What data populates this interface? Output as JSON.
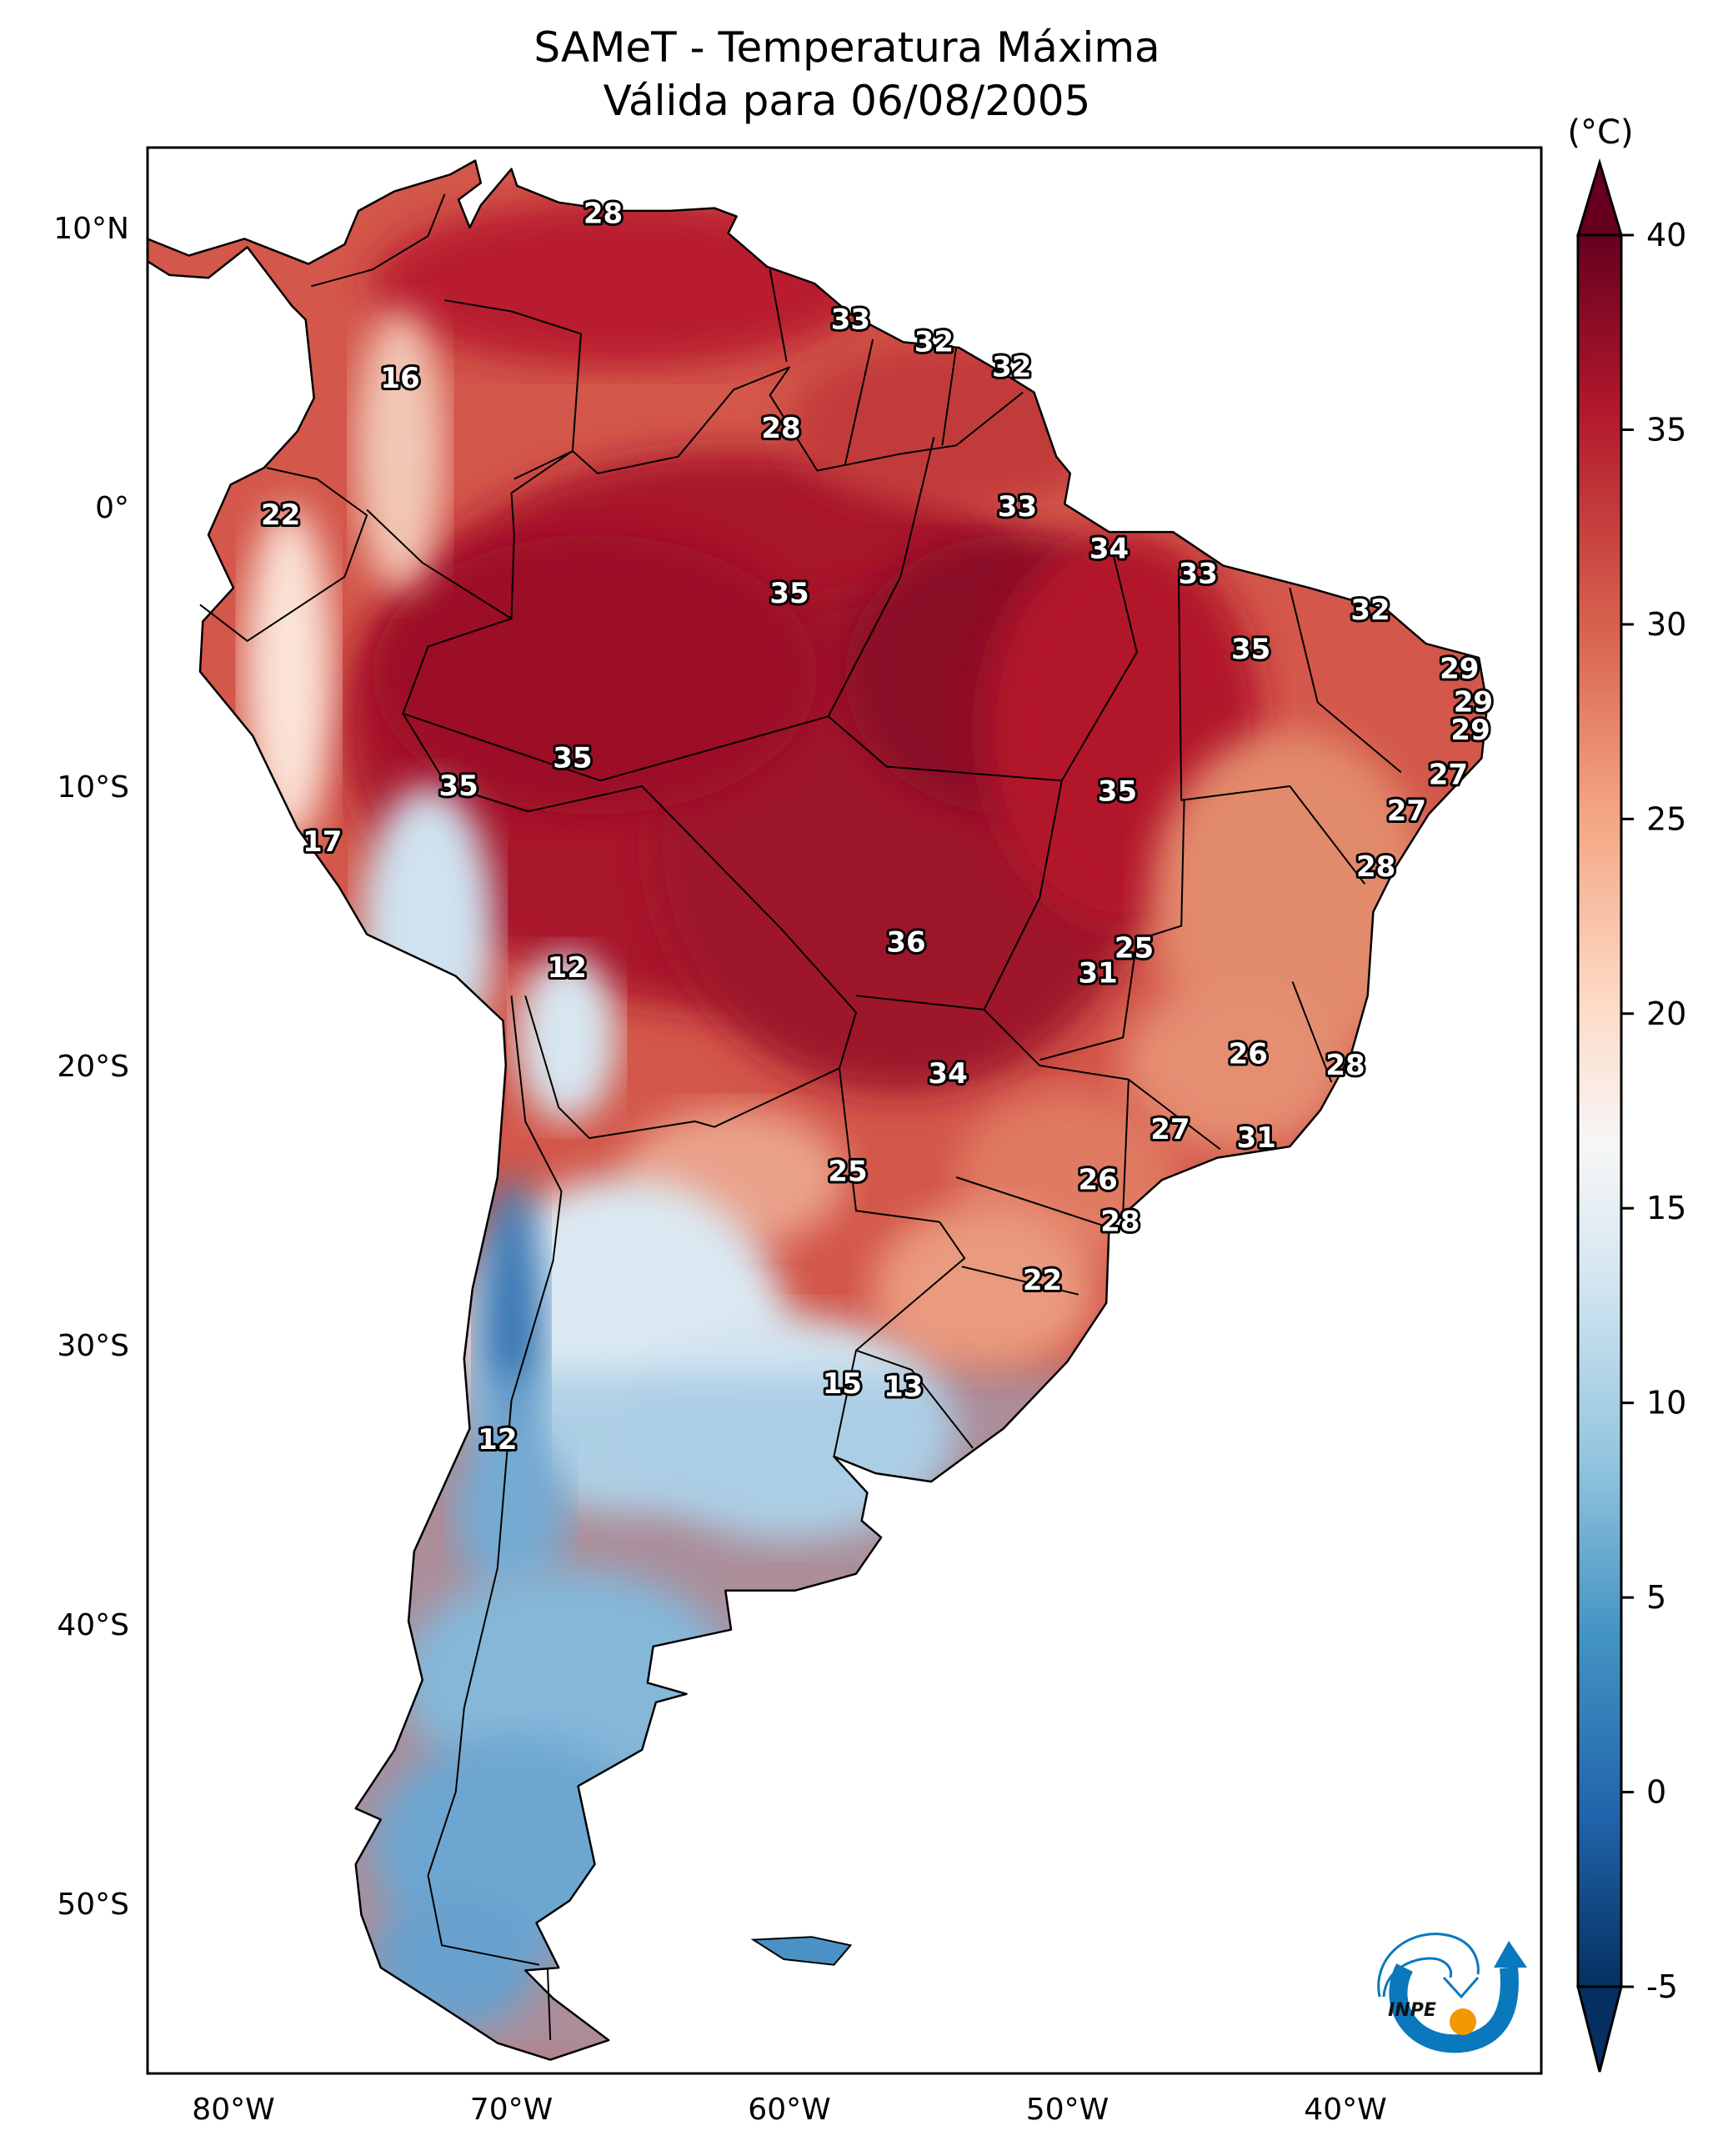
{
  "title": {
    "line1": "SAMeT - Temperatura Máxima",
    "line2": "Válida para 06/08/2005"
  },
  "chart_data": {
    "type": "heatmap",
    "title": "SAMeT - Temperatura Máxima",
    "subtitle": "Válida para 06/08/2005",
    "variable": "Maximum temperature",
    "region": "South America",
    "extent": {
      "lon": [
        -83,
        -33
      ],
      "lat": [
        -56,
        13
      ]
    },
    "xticks": [
      {
        "lon": -80,
        "label": "80°W"
      },
      {
        "lon": -70,
        "label": "70°W"
      },
      {
        "lon": -60,
        "label": "60°W"
      },
      {
        "lon": -50,
        "label": "50°W"
      },
      {
        "lon": -40,
        "label": "40°W"
      }
    ],
    "yticks": [
      {
        "lat": 10,
        "label": "10°N"
      },
      {
        "lat": 0,
        "label": "0°"
      },
      {
        "lat": -10,
        "label": "10°S"
      },
      {
        "lat": -20,
        "label": "20°S"
      },
      {
        "lat": -30,
        "label": "30°S"
      },
      {
        "lat": -40,
        "label": "40°S"
      },
      {
        "lat": -50,
        "label": "50°S"
      }
    ],
    "colorbar": {
      "unit": "(°C)",
      "min": -5,
      "max": 40,
      "extend": "both",
      "ticks": [
        40,
        35,
        30,
        25,
        20,
        15,
        10,
        5,
        0,
        -5
      ],
      "colormap": "RdBu_r",
      "colors": [
        "#053061",
        "#2166ac",
        "#4393c3",
        "#92c5de",
        "#d1e5f0",
        "#f7f7f7",
        "#fddbc7",
        "#f4a582",
        "#d6604d",
        "#b2182b",
        "#67001f"
      ]
    },
    "city_labels": [
      {
        "value": 28,
        "lon": -66.7,
        "lat": 10.5
      },
      {
        "value": 16,
        "lon": -74.0,
        "lat": 4.6
      },
      {
        "value": 33,
        "lon": -57.8,
        "lat": 6.7
      },
      {
        "value": 32,
        "lon": -54.8,
        "lat": 5.9
      },
      {
        "value": 32,
        "lon": -52.0,
        "lat": 5.0
      },
      {
        "value": 28,
        "lon": -60.3,
        "lat": 2.8
      },
      {
        "value": 22,
        "lon": -78.3,
        "lat": -0.3
      },
      {
        "value": 33,
        "lon": -51.8,
        "lat": 0.0
      },
      {
        "value": 34,
        "lon": -48.5,
        "lat": -1.5
      },
      {
        "value": 33,
        "lon": -45.3,
        "lat": -2.4
      },
      {
        "value": 35,
        "lon": -60.0,
        "lat": -3.1
      },
      {
        "value": 32,
        "lon": -39.1,
        "lat": -3.7
      },
      {
        "value": 35,
        "lon": -43.4,
        "lat": -5.1
      },
      {
        "value": 29,
        "lon": -35.9,
        "lat": -5.8
      },
      {
        "value": 29,
        "lon": -35.4,
        "lat": -7.0
      },
      {
        "value": 29,
        "lon": -35.5,
        "lat": -8.0
      },
      {
        "value": 35,
        "lon": -67.8,
        "lat": -9.0
      },
      {
        "value": 35,
        "lon": -71.9,
        "lat": -10.0
      },
      {
        "value": 27,
        "lon": -36.3,
        "lat": -9.6
      },
      {
        "value": 35,
        "lon": -48.2,
        "lat": -10.2
      },
      {
        "value": 27,
        "lon": -37.8,
        "lat": -10.9
      },
      {
        "value": 17,
        "lon": -76.8,
        "lat": -12.0
      },
      {
        "value": 28,
        "lon": -38.9,
        "lat": -12.9
      },
      {
        "value": 36,
        "lon": -55.8,
        "lat": -15.6
      },
      {
        "value": 25,
        "lon": -47.6,
        "lat": -15.8
      },
      {
        "value": 31,
        "lon": -48.9,
        "lat": -16.7
      },
      {
        "value": 12,
        "lon": -68.0,
        "lat": -16.5
      },
      {
        "value": 26,
        "lon": -43.5,
        "lat": -19.6
      },
      {
        "value": 34,
        "lon": -54.3,
        "lat": -20.3
      },
      {
        "value": 28,
        "lon": -40.0,
        "lat": -20.0
      },
      {
        "value": 31,
        "lon": -43.2,
        "lat": -22.6
      },
      {
        "value": 27,
        "lon": -46.3,
        "lat": -22.3
      },
      {
        "value": 25,
        "lon": -57.9,
        "lat": -23.8
      },
      {
        "value": 26,
        "lon": -48.9,
        "lat": -24.1
      },
      {
        "value": 28,
        "lon": -48.1,
        "lat": -25.6
      },
      {
        "value": 22,
        "lon": -50.9,
        "lat": -27.7
      },
      {
        "value": 12,
        "lon": -70.5,
        "lat": -33.4
      },
      {
        "value": 15,
        "lon": -58.1,
        "lat": -31.4
      },
      {
        "value": 13,
        "lon": -55.9,
        "lat": -31.5
      }
    ]
  },
  "logo": {
    "text": "INPE",
    "blue": "#0a78bd",
    "orange": "#f39800"
  }
}
